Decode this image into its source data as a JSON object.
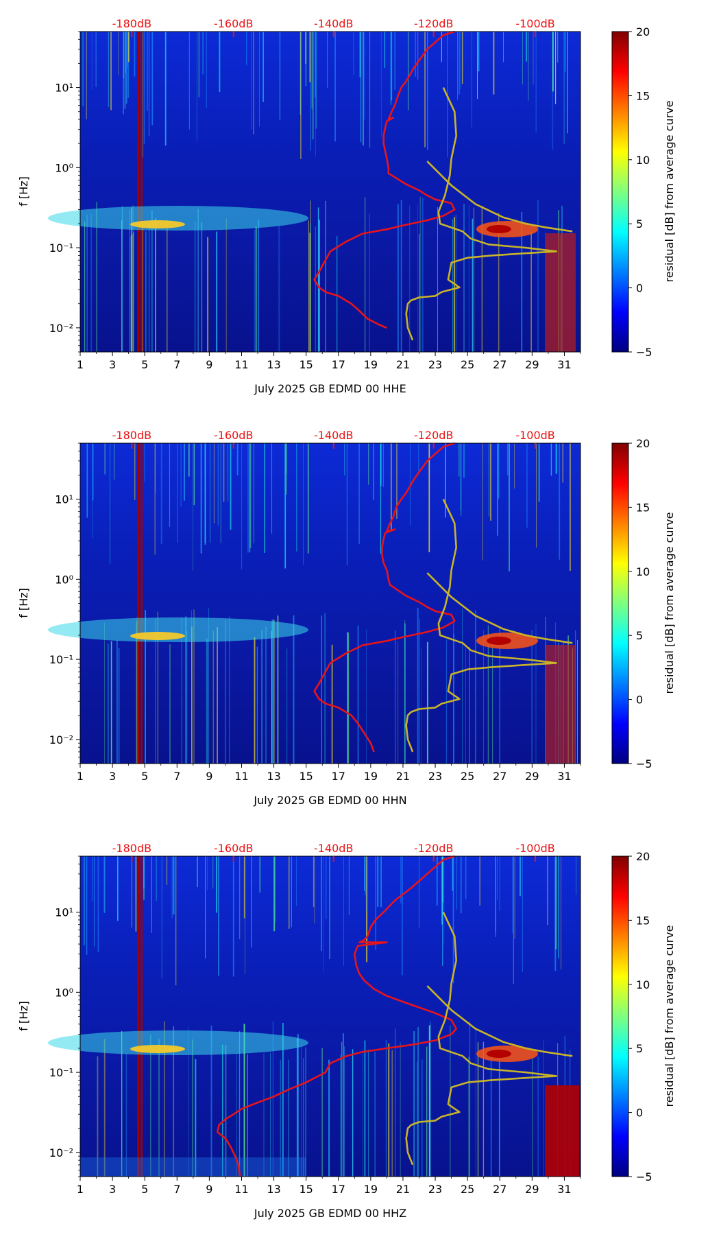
{
  "chart_data": [
    {
      "type": "heatmap",
      "channel": "HHE",
      "xlabel": "July 2025 GB EDMD 00 HHE",
      "ylabel": "f [Hz]",
      "x_ticks": [
        "1",
        "3",
        "5",
        "7",
        "9",
        "11",
        "13",
        "15",
        "17",
        "19",
        "21",
        "23",
        "25",
        "27",
        "29",
        "31"
      ],
      "x_range": [
        1,
        32
      ],
      "y_ticks": [
        "10⁻²",
        "10⁻¹",
        "10⁰",
        "10¹"
      ],
      "y_range_hz": [
        0.005,
        50
      ],
      "top_axis_ticks": [
        "-180dB",
        "-160dB",
        "-140dB",
        "-120dB",
        "-100dB"
      ],
      "colorbar": {
        "label": "residual [dB] from average curve",
        "ticks": [
          "20",
          "15",
          "10",
          "5",
          "0",
          "−5"
        ],
        "range": [
          -5,
          20
        ]
      },
      "series": [
        {
          "name": "average PSD curve",
          "color": "#e8141a",
          "x": [
            24.2,
            23.5,
            22.5,
            21.7,
            21.2,
            20.9,
            20.7,
            20.5,
            20.3,
            20.1,
            20.4,
            20.0,
            19.9,
            19.8,
            19.8,
            19.9,
            20.0,
            20.1,
            20.1,
            21.2,
            22.0,
            22.5,
            23.0,
            24.0,
            24.2,
            23.5,
            22.5,
            21.0,
            20.0,
            18.5,
            17.5,
            16.5,
            16.2,
            15.8,
            15.5,
            15.8,
            16.2,
            17.0,
            17.8,
            18.2,
            18.8,
            19.5,
            20.0
          ],
          "y": [
            50,
            45,
            30,
            18,
            12,
            10,
            8,
            6,
            5,
            4,
            4.2,
            3.8,
            3.2,
            2.5,
            2.0,
            1.6,
            1.3,
            1.0,
            0.85,
            0.62,
            0.52,
            0.45,
            0.4,
            0.36,
            0.3,
            0.25,
            0.22,
            0.19,
            0.17,
            0.15,
            0.12,
            0.09,
            0.07,
            0.05,
            0.04,
            0.032,
            0.028,
            0.025,
            0.02,
            0.017,
            0.013,
            0.011,
            0.01
          ]
        },
        {
          "name": "model bound curve",
          "color": "#c8b428",
          "x": [
            23.5,
            24.2,
            24.3,
            24.0,
            23.9,
            23.6,
            23.2,
            23.3,
            24.7,
            25.2,
            26.3,
            28.6,
            30.5,
            28.5,
            26.5,
            25.0,
            24.0,
            23.8,
            24.5,
            23.4,
            23.0,
            22.0,
            21.5,
            21.3,
            21.2,
            21.3,
            21.6
          ],
          "y": [
            10,
            5,
            2.5,
            1.3,
            0.8,
            0.45,
            0.28,
            0.2,
            0.16,
            0.13,
            0.11,
            0.1,
            0.09,
            0.085,
            0.08,
            0.075,
            0.065,
            0.04,
            0.032,
            0.028,
            0.025,
            0.024,
            0.022,
            0.02,
            0.015,
            0.01,
            0.007
          ]
        },
        {
          "name": "upper model curve",
          "color": "#c8b428",
          "x": [
            22.5,
            24.0,
            25.5,
            27.2,
            28.6,
            29.8,
            31.5
          ],
          "y": [
            1.2,
            0.6,
            0.35,
            0.24,
            0.2,
            0.18,
            0.16
          ]
        }
      ]
    },
    {
      "type": "heatmap",
      "channel": "HHN",
      "xlabel": "July 2025 GB EDMD 00 HHN",
      "ylabel": "f [Hz]",
      "x_ticks": [
        "1",
        "3",
        "5",
        "7",
        "9",
        "11",
        "13",
        "15",
        "17",
        "19",
        "21",
        "23",
        "25",
        "27",
        "29",
        "31"
      ],
      "x_range": [
        1,
        32
      ],
      "y_ticks": [
        "10⁻²",
        "10⁻¹",
        "10⁰",
        "10¹"
      ],
      "y_range_hz": [
        0.005,
        50
      ],
      "top_axis_ticks": [
        "-180dB",
        "-160dB",
        "-140dB",
        "-120dB",
        "-100dB"
      ],
      "colorbar": {
        "label": "residual [dB] from average curve",
        "ticks": [
          "20",
          "15",
          "10",
          "5",
          "0",
          "−5"
        ],
        "range": [
          -5,
          20
        ]
      },
      "series": [
        {
          "name": "average PSD curve",
          "color": "#e8141a",
          "x": [
            24.2,
            23.5,
            22.5,
            21.7,
            21.2,
            20.9,
            20.6,
            20.4,
            20.2,
            20.0,
            20.5,
            19.9,
            19.8,
            19.7,
            19.7,
            19.8,
            20.0,
            20.1,
            20.2,
            21.2,
            22.0,
            22.5,
            23.0,
            24.0,
            24.2,
            23.5,
            22.5,
            21.0,
            20.0,
            18.5,
            17.5,
            16.5,
            16.2,
            15.8,
            15.5,
            15.8,
            16.2,
            17.0,
            17.8,
            18.2,
            18.6,
            19.0,
            19.2
          ],
          "y": [
            50,
            45,
            30,
            18,
            12,
            10,
            8,
            6,
            5,
            4,
            4.2,
            3.8,
            3.2,
            2.5,
            2.0,
            1.6,
            1.3,
            1.0,
            0.85,
            0.62,
            0.52,
            0.45,
            0.4,
            0.36,
            0.3,
            0.25,
            0.22,
            0.19,
            0.17,
            0.15,
            0.12,
            0.09,
            0.07,
            0.05,
            0.04,
            0.032,
            0.028,
            0.025,
            0.02,
            0.016,
            0.012,
            0.009,
            0.007
          ]
        },
        {
          "name": "model bound curve",
          "color": "#c8b428",
          "x": [
            23.5,
            24.2,
            24.3,
            24.0,
            23.9,
            23.6,
            23.2,
            23.3,
            24.7,
            25.2,
            26.3,
            28.6,
            30.5,
            28.5,
            26.5,
            25.0,
            24.0,
            23.8,
            24.5,
            23.4,
            23.0,
            22.0,
            21.5,
            21.3,
            21.2,
            21.3,
            21.6
          ],
          "y": [
            10,
            5,
            2.5,
            1.3,
            0.8,
            0.45,
            0.28,
            0.2,
            0.16,
            0.13,
            0.11,
            0.1,
            0.09,
            0.085,
            0.08,
            0.075,
            0.065,
            0.04,
            0.032,
            0.028,
            0.025,
            0.024,
            0.022,
            0.02,
            0.015,
            0.01,
            0.007
          ]
        },
        {
          "name": "upper model curve",
          "color": "#c8b428",
          "x": [
            22.5,
            24.0,
            25.5,
            27.2,
            28.6,
            29.8,
            31.5
          ],
          "y": [
            1.2,
            0.6,
            0.35,
            0.24,
            0.2,
            0.18,
            0.16
          ]
        }
      ]
    },
    {
      "type": "heatmap",
      "channel": "HHZ",
      "xlabel": "July 2025 GB EDMD 00 HHZ",
      "ylabel": "f [Hz]",
      "x_ticks": [
        "1",
        "3",
        "5",
        "7",
        "9",
        "11",
        "13",
        "15",
        "17",
        "19",
        "21",
        "23",
        "25",
        "27",
        "29",
        "31"
      ],
      "x_range": [
        1,
        32
      ],
      "y_ticks": [
        "10⁻²",
        "10⁻¹",
        "10⁰",
        "10¹"
      ],
      "y_range_hz": [
        0.005,
        50
      ],
      "top_axis_ticks": [
        "-180dB",
        "-160dB",
        "-140dB",
        "-120dB",
        "-100dB"
      ],
      "colorbar": {
        "label": "residual [dB] from average curve",
        "ticks": [
          "20",
          "15",
          "10",
          "5",
          "0",
          "−5"
        ],
        "range": [
          -5,
          20
        ]
      },
      "series": [
        {
          "name": "average PSD curve",
          "color": "#e8141a",
          "x": [
            24.2,
            23.5,
            22.5,
            21.5,
            20.5,
            19.8,
            19.3,
            19.0,
            18.8,
            18.6,
            18.3,
            20.0,
            18.2,
            18.0,
            18.1,
            18.3,
            18.6,
            19.2,
            20.0,
            21.5,
            23.0,
            24.0,
            24.3,
            24.0,
            23.0,
            21.5,
            20.0,
            18.5,
            17.5,
            16.5,
            16.2,
            15.0,
            14.0,
            13.0,
            12.0,
            11.0,
            10.5,
            10.0,
            9.6,
            9.5,
            10.0,
            10.3,
            10.6,
            10.8,
            10.9
          ],
          "y": [
            50,
            45,
            30,
            20,
            14,
            10,
            8,
            6.5,
            5,
            4.5,
            4.2,
            4.2,
            3.8,
            3.0,
            2.2,
            1.7,
            1.4,
            1.1,
            0.9,
            0.7,
            0.55,
            0.45,
            0.35,
            0.3,
            0.25,
            0.22,
            0.2,
            0.18,
            0.16,
            0.13,
            0.1,
            0.075,
            0.062,
            0.05,
            0.042,
            0.035,
            0.03,
            0.026,
            0.022,
            0.018,
            0.015,
            0.012,
            0.009,
            0.007,
            0.005
          ]
        },
        {
          "name": "model bound curve",
          "color": "#c8b428",
          "x": [
            23.5,
            24.2,
            24.3,
            24.0,
            23.9,
            23.6,
            23.2,
            23.3,
            24.7,
            25.2,
            26.3,
            28.6,
            30.5,
            28.5,
            26.5,
            25.0,
            24.0,
            23.8,
            24.5,
            23.4,
            23.0,
            22.0,
            21.5,
            21.3,
            21.2,
            21.3,
            21.6
          ],
          "y": [
            10,
            5,
            2.5,
            1.3,
            0.8,
            0.45,
            0.28,
            0.2,
            0.16,
            0.13,
            0.11,
            0.1,
            0.09,
            0.085,
            0.08,
            0.075,
            0.065,
            0.04,
            0.032,
            0.028,
            0.025,
            0.024,
            0.022,
            0.02,
            0.015,
            0.01,
            0.007
          ]
        },
        {
          "name": "upper model curve",
          "color": "#c8b428",
          "x": [
            22.5,
            24.0,
            25.5,
            27.2,
            28.6,
            29.8,
            31.5
          ],
          "y": [
            1.2,
            0.6,
            0.35,
            0.24,
            0.2,
            0.18,
            0.16
          ]
        }
      ]
    }
  ],
  "colors": {
    "heatmap_background": "#0a1aa8",
    "curve_red": "#e8141a",
    "curve_yellow": "#c8b428",
    "top_axis_text": "#ee1111",
    "colormap": [
      "#00007f",
      "#0000ff",
      "#007fff",
      "#00ffff",
      "#7fff7f",
      "#ffff00",
      "#ff7f00",
      "#ff0000",
      "#7f0000"
    ]
  }
}
